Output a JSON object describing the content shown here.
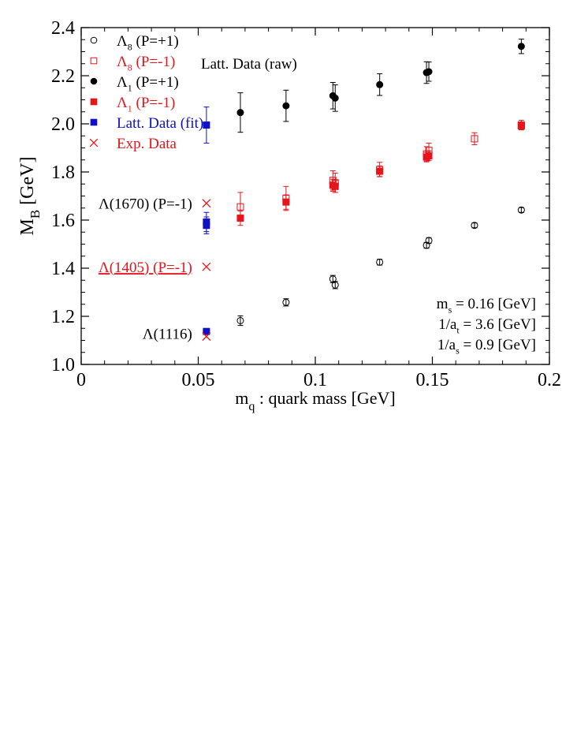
{
  "chart_data": {
    "type": "scatter",
    "title": "",
    "xlabel": "m_q : quark mass [GeV]",
    "xlabel_parts": {
      "main": "m",
      "sub": "q",
      "rest": " : quark mass [GeV]"
    },
    "ylabel": "M_B [GeV]",
    "ylabel_parts": {
      "main": "M",
      "sub": "B",
      "rest": " [GeV]"
    },
    "xlim": [
      0,
      0.2
    ],
    "ylim": [
      1.0,
      2.4
    ],
    "xticks": [
      0,
      0.05,
      0.1,
      0.15,
      0.2
    ],
    "xtick_labels": [
      "0",
      "0.05",
      "0.1",
      "0.15",
      "0.2"
    ],
    "yticks": [
      1.0,
      1.2,
      1.4,
      1.6,
      1.8,
      2.0,
      2.2,
      2.4
    ],
    "ytick_labels": [
      "1.0",
      "1.2",
      "1.4",
      "1.6",
      "1.8",
      "2.0",
      "2.2",
      "2.4"
    ],
    "grid": false,
    "legend_position": "top-left",
    "legend_title": "Latt. Data (raw)",
    "series": [
      {
        "name": "Λ8 (P=+1)",
        "label_main": "Λ",
        "label_sub": "8",
        "label_rest": " (P=+1)",
        "color": "#000000",
        "marker": "circle-open",
        "points": [
          {
            "x": 0.068,
            "y": 1.182,
            "err": 0.02
          },
          {
            "x": 0.0875,
            "y": 1.258,
            "err": 0.015
          },
          {
            "x": 0.1075,
            "y": 1.355,
            "err": 0.015
          },
          {
            "x": 0.1085,
            "y": 1.33,
            "err": 0.015
          },
          {
            "x": 0.1275,
            "y": 1.425,
            "err": 0.012
          },
          {
            "x": 0.1475,
            "y": 1.495,
            "err": 0.012
          },
          {
            "x": 0.1485,
            "y": 1.515,
            "err": 0.012
          },
          {
            "x": 0.168,
            "y": 1.578,
            "err": 0.01
          },
          {
            "x": 0.188,
            "y": 1.642,
            "err": 0.01
          }
        ]
      },
      {
        "name": "Λ8 (P=-1)",
        "label_main": "Λ",
        "label_sub": "8",
        "label_rest": " (P=-1)",
        "color": "#e8141c",
        "marker": "square-open",
        "points": [
          {
            "x": 0.068,
            "y": 1.655,
            "err": 0.06
          },
          {
            "x": 0.0875,
            "y": 1.69,
            "err": 0.05
          },
          {
            "x": 0.1075,
            "y": 1.765,
            "err": 0.04
          },
          {
            "x": 0.1085,
            "y": 1.755,
            "err": 0.04
          },
          {
            "x": 0.1275,
            "y": 1.81,
            "err": 0.03
          },
          {
            "x": 0.1475,
            "y": 1.875,
            "err": 0.03
          },
          {
            "x": 0.1485,
            "y": 1.89,
            "err": 0.03
          },
          {
            "x": 0.168,
            "y": 1.938,
            "err": 0.025
          },
          {
            "x": 0.188,
            "y": 1.995,
            "err": 0.02
          }
        ]
      },
      {
        "name": "Λ1 (P=+1)",
        "label_main": "Λ",
        "label_sub": "1",
        "label_rest": " (P=+1)",
        "color": "#000000",
        "marker": "circle-filled",
        "points": [
          {
            "x": 0.068,
            "y": 2.047,
            "err": 0.082
          },
          {
            "x": 0.0875,
            "y": 2.075,
            "err": 0.065
          },
          {
            "x": 0.1075,
            "y": 2.117,
            "err": 0.055
          },
          {
            "x": 0.1085,
            "y": 2.107,
            "err": 0.055
          },
          {
            "x": 0.1275,
            "y": 2.163,
            "err": 0.045
          },
          {
            "x": 0.1475,
            "y": 2.213,
            "err": 0.045
          },
          {
            "x": 0.1485,
            "y": 2.217,
            "err": 0.04
          },
          {
            "x": 0.188,
            "y": 2.322,
            "err": 0.03
          }
        ]
      },
      {
        "name": "Λ1 (P=-1)",
        "label_main": "Λ",
        "label_sub": "1",
        "label_rest": " (P=-1)",
        "color": "#e8141c",
        "marker": "square-filled",
        "points": [
          {
            "x": 0.068,
            "y": 1.608,
            "err": 0.03
          },
          {
            "x": 0.0875,
            "y": 1.675,
            "err": 0.03
          },
          {
            "x": 0.1075,
            "y": 1.745,
            "err": 0.025
          },
          {
            "x": 0.1085,
            "y": 1.74,
            "err": 0.025
          },
          {
            "x": 0.1275,
            "y": 1.803,
            "err": 0.022
          },
          {
            "x": 0.1475,
            "y": 1.862,
            "err": 0.02
          },
          {
            "x": 0.1485,
            "y": 1.867,
            "err": 0.02
          },
          {
            "x": 0.188,
            "y": 1.992,
            "err": 0.015
          }
        ]
      },
      {
        "name": "Latt. Data (fit)",
        "label_main": "Latt. Data (fit)",
        "label_sub": "",
        "label_rest": "",
        "color": "#1010c8",
        "marker": "square-filled",
        "points": [
          {
            "x": 0.0535,
            "y": 1.995,
            "err": 0.075
          },
          {
            "x": 0.0535,
            "y": 1.592,
            "err": 0.04
          },
          {
            "x": 0.0535,
            "y": 1.578,
            "err": 0.035
          },
          {
            "x": 0.0535,
            "y": 1.137,
            "err": 0.012
          }
        ]
      },
      {
        "name": "Exp. Data",
        "label_main": "Exp. Data",
        "label_sub": "",
        "label_rest": "",
        "color": "#e8141c",
        "marker": "cross",
        "points": [
          {
            "x": 0.0535,
            "y": 1.67
          },
          {
            "x": 0.0535,
            "y": 1.406
          },
          {
            "x": 0.0535,
            "y": 1.116
          }
        ]
      }
    ],
    "point_annotations": [
      {
        "text": "Λ(1670)  (P=-1)",
        "x": 0.0535,
        "y": 1.67,
        "color": "#000000",
        "underline": false
      },
      {
        "text": "Λ(1405)  (P=-1)",
        "x": 0.0535,
        "y": 1.406,
        "color": "#e8141c",
        "underline": true
      },
      {
        "text": "Λ(1116)",
        "x": 0.0535,
        "y": 1.13,
        "color": "#000000",
        "underline": false
      }
    ],
    "parameter_box": [
      {
        "main": "m",
        "sub": "s",
        "rest": " = 0.16 [GeV]"
      },
      {
        "main": "1/a",
        "sub": "t",
        "rest": " = 3.6 [GeV]"
      },
      {
        "main": "1/a",
        "sub": "s",
        "rest": " = 0.9 [GeV]"
      }
    ]
  }
}
